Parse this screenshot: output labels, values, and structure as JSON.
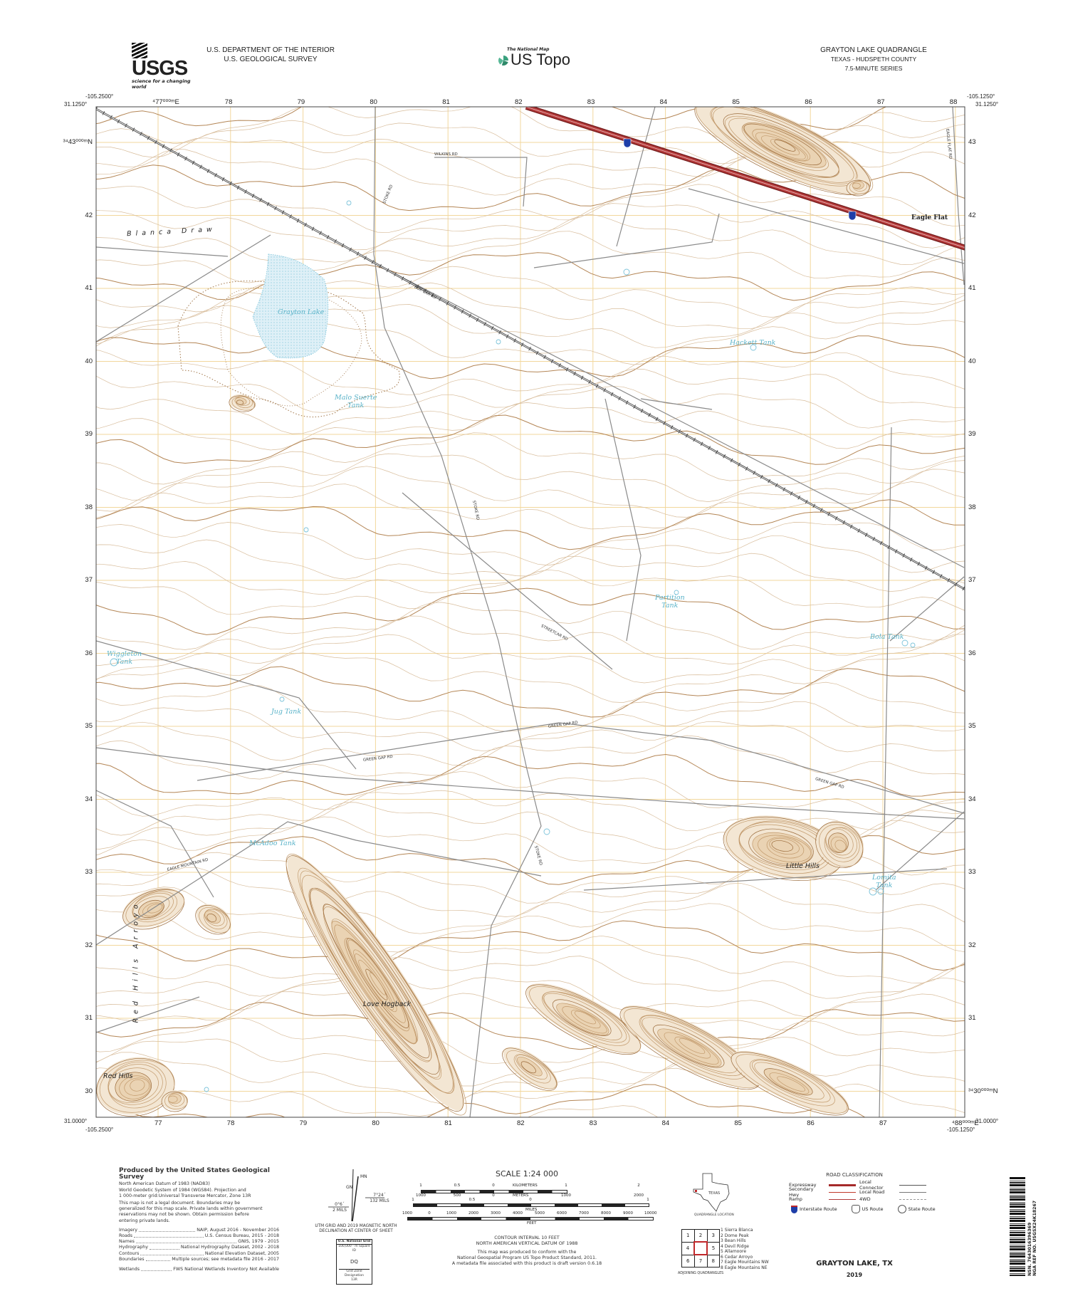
{
  "header": {
    "logo_text": "USGS",
    "logo_tagline": "science for a changing world",
    "department": "U.S. DEPARTMENT OF THE INTERIOR",
    "agency": "U.S. GEOLOGICAL SURVEY",
    "program_small": "The National Map",
    "program_name": "US Topo",
    "quad_title": "GRAYTON LAKE QUADRANGLE",
    "quad_state_county": "TEXAS - HUDSPETH COUNTY",
    "quad_series": "7.5-MINUTE SERIES"
  },
  "map": {
    "corners": {
      "top_left_lon": "-105.2500°",
      "top_left_lat": "31.1250°",
      "top_right_lon": "-105.1250°",
      "top_right_lat": "31.1250°",
      "bottom_left_lat": "31.0000°",
      "bottom_left_lon": "-105.2500°",
      "bottom_right_lat": "31.0000°",
      "bottom_right_lon": "-105.1250°"
    },
    "easting_labels": [
      "⁴77⁰⁰⁰ᵐE",
      "78",
      "79",
      "80",
      "81",
      "82",
      "83",
      "84",
      "85",
      "86",
      "87",
      "88"
    ],
    "easting_labels_bottom": [
      "77",
      "78",
      "79",
      "80",
      "81",
      "82",
      "83",
      "84",
      "85",
      "86",
      "87",
      "⁴88⁰⁰⁰ᵐE"
    ],
    "northing_labels_left": [
      "³⁴43⁰⁰⁰ᵐN",
      "42",
      "41",
      "40",
      "39",
      "38",
      "37",
      "36",
      "35",
      "34",
      "33",
      "32",
      "31",
      "30"
    ],
    "northing_labels_right": [
      "43",
      "42",
      "41",
      "40",
      "39",
      "38",
      "37",
      "36",
      "35",
      "34",
      "33",
      "32",
      "31",
      "³⁴30⁰⁰⁰ᵐN"
    ],
    "features": {
      "blanca_draw": "Blanca Draw",
      "grayton_lake": "Grayton Lake",
      "malo_suerte_tank": "Malo Suerte\nTank",
      "hackett_tank": "Hackett Tank",
      "eagle_flat": "Eagle Flat",
      "partition_tank": "Partition\nTank",
      "bola_tank": "Bola Tank",
      "wiggleton_tank": "Wiggleton\nTank",
      "jug_tank": "Jug Tank",
      "mcadoo_tank": "McAdoo Tank",
      "little_hills": "Little Hills",
      "lomita_tank": "Lomita\nTank",
      "love_hogback": "Love Hogback",
      "red_hills": "Red Hills",
      "red_hills_arroyo": "Red Hills Arroyo"
    },
    "roads": {
      "wilkins": "WILKINS RD",
      "stoke": "STOKE RD",
      "box_car": "BOX CAR RD",
      "streetcar": "STREETCAR RD",
      "green_gap": "GREEN GAP RD",
      "eagle_mountain": "EAGLE MOUNTAIN RD",
      "eagle_flat": "EAGLE FLAT RD"
    },
    "interstate_shield": "10",
    "colors": {
      "contour": "#d8bd9c",
      "index_contour": "#b48656",
      "grid": "#f2d79c",
      "road": "#8a8a8a",
      "expressway": "#a52a2a",
      "water": "#5ab3c9"
    }
  },
  "footer": {
    "producer": "Produced by the United States Geological Survey",
    "datum_lines": [
      "North American Datum of 1983 (NAD83)",
      "World Geodetic System of 1984 (WGS84).  Projection and",
      "1 000-meter grid:Universal Transverse Mercator, Zone 13R"
    ],
    "disclaimer": [
      "This map is not a legal document. Boundaries may be",
      "generalized for this map scale. Private lands within government",
      "reservations may not be shown. Obtain permission before",
      "entering private lands."
    ],
    "credits": [
      {
        "label": "Imagery",
        "source": "NAIP, August 2016 - November 2016"
      },
      {
        "label": "Roads",
        "source": "U.S. Census Bureau, 2015 - 2018"
      },
      {
        "label": "Names",
        "source": "GNIS, 1979 - 2015"
      },
      {
        "label": "Hydrography",
        "source": "National Hydrography Dataset, 2002 - 2018"
      },
      {
        "label": "Contours",
        "source": "National Elevation Dataset, 2005"
      },
      {
        "label": "Boundaries",
        "source": "Multiple sources; see metadata file 2016 - 2017"
      },
      {
        "label": "Wetlands",
        "source": "FWS National Wetlands Inventory Not Available"
      }
    ],
    "declination": {
      "mn": "MN",
      "gn": "GN",
      "east_angle": "7°24´",
      "east_mils": "132 MILS",
      "west_angle": "0°6´",
      "west_mils": "2 MILS",
      "caption": "UTM GRID AND 2019 MAGNETIC NORTH\nDECLINATION AT CENTER OF SHEET"
    },
    "national_grid": {
      "title": "U.S. National Grid",
      "square_label": "100,000 - m Square ID",
      "square_id": "DQ",
      "zone_label": "Grid Zone Designation",
      "zone": "13R"
    },
    "scale": {
      "title": "SCALE 1:24 000",
      "km_label": "KILOMETERS",
      "km_ticks": [
        "1",
        "0.5",
        "0",
        "1",
        "2"
      ],
      "m_label": "METERS",
      "m_ticks": [
        "1000",
        "500",
        "0",
        "1000",
        "2000"
      ],
      "mi_label": "MILES",
      "mi_ticks": [
        "1",
        "0.5",
        "0",
        "1"
      ],
      "ft_label": "FEET",
      "ft_ticks": [
        "1000",
        "0",
        "1000",
        "2000",
        "3000",
        "4000",
        "5000",
        "6000",
        "7000",
        "8000",
        "9000",
        "10000"
      ]
    },
    "contour_interval": "CONTOUR INTERVAL 10 FEET",
    "vertical_datum": "NORTH AMERICAN VERTICAL DATUM OF 1988",
    "standard_lines": [
      "This map was produced to conform with the",
      "National Geospatial Program US Topo Product Standard, 2011.",
      "A metadata file associated with this product is draft version 0.6.18"
    ],
    "location": {
      "state": "TEXAS",
      "caption": "QUADRANGLE LOCATION"
    },
    "adjoining": {
      "caption": "ADJOINING QUADRANGLES",
      "cells": [
        "1",
        "2",
        "3",
        "4",
        "",
        "5",
        "6",
        "7",
        "8"
      ],
      "names": [
        "1 Sierra Blanca",
        "2 Dome Peak",
        "3 Bean Hills",
        "4 Devil Ridge",
        "5 Allamoore",
        "6 Cedar Arroyo",
        "7 Eagle Mountains NW",
        "8 Eagle Mountains NE"
      ]
    },
    "road_classification": {
      "title": "ROAD CLASSIFICATION",
      "left": [
        {
          "label": "Expressway",
          "color": "#a52a2a"
        },
        {
          "label": "Secondary Hwy",
          "color": "#c0392b"
        },
        {
          "label": "Ramp",
          "color": "#b03a3a"
        }
      ],
      "right": [
        {
          "label": "Local Connector",
          "color": "#555555"
        },
        {
          "label": "Local Road",
          "color": "#777777"
        },
        {
          "label": "4WD",
          "color": "#999999"
        }
      ],
      "shields": [
        "Interstate Route",
        "US Route",
        "State Route"
      ]
    },
    "sheet_title": "GRAYTON LAKE, TX",
    "year": "2019",
    "barcode": {
      "nsn": "NSN. 7643016396369",
      "nga": "NGA REF NO. USGSX24K18267"
    }
  }
}
